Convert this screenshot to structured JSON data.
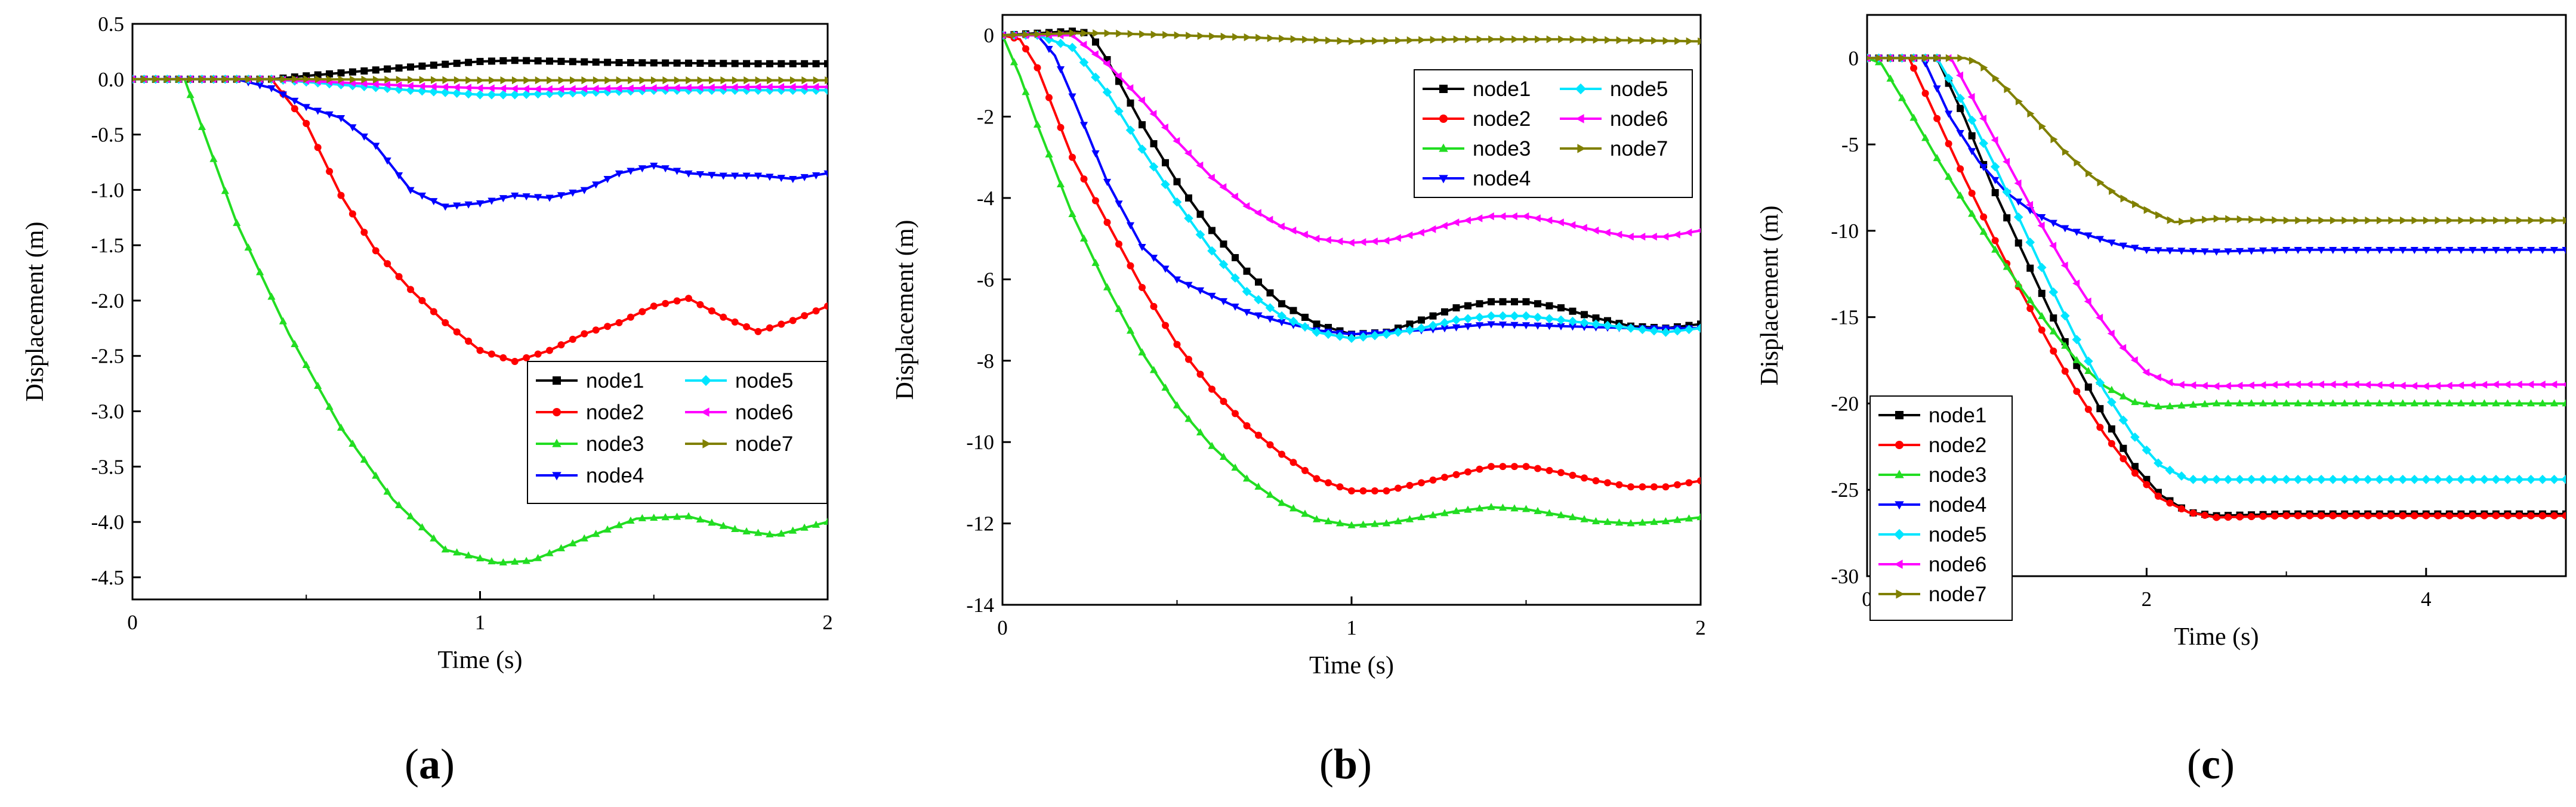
{
  "colors": {
    "node1": "#000000",
    "node2": "#ff0000",
    "node3": "#22dd22",
    "node4": "#0000ff",
    "node5": "#00e5ff",
    "node6": "#ff00ff",
    "node7": "#808000"
  },
  "chart_data": [
    {
      "type": "line",
      "panel_label": "a",
      "xlabel": "Time (s)",
      "ylabel": "Displacement (m)",
      "xlim": [
        0,
        2
      ],
      "ylim": [
        -4.7,
        0.5
      ],
      "xticks": [
        0,
        1,
        2
      ],
      "yticks": [
        0.5,
        0.0,
        -0.5,
        -1.0,
        -1.5,
        -2.0,
        -2.5,
        -3.0,
        -3.5,
        -4.0,
        -4.5
      ],
      "ytick_labels": [
        "0.5",
        "0.0",
        "-0.5",
        "-1.0",
        "-1.5",
        "-2.0",
        "-2.5",
        "-3.0",
        "-3.5",
        "-4.0",
        "-4.5"
      ],
      "xtick_labels": [
        "0",
        "1",
        "2"
      ],
      "legend_columns": 2,
      "legend_position": "lower-right",
      "legend_order": [
        "node1",
        "node5",
        "node2",
        "node6",
        "node3",
        "node7",
        "node4"
      ],
      "series": [
        {
          "name": "node1",
          "x": [
            0,
            0.4,
            0.5,
            0.8,
            1.0,
            1.1,
            1.4,
            1.8,
            2.0
          ],
          "y": [
            0,
            0,
            0.03,
            0.11,
            0.16,
            0.17,
            0.15,
            0.14,
            0.14
          ]
        },
        {
          "name": "node2",
          "x": [
            0,
            0.4,
            0.5,
            0.6,
            0.7,
            0.8,
            0.9,
            1.0,
            1.1,
            1.2,
            1.3,
            1.4,
            1.5,
            1.6,
            1.7,
            1.8,
            1.9,
            2.0
          ],
          "y": [
            0,
            0,
            -0.4,
            -1.05,
            -1.55,
            -1.9,
            -2.2,
            -2.45,
            -2.55,
            -2.45,
            -2.3,
            -2.2,
            -2.05,
            -1.98,
            -2.15,
            -2.28,
            -2.18,
            -2.05
          ]
        },
        {
          "name": "node3",
          "x": [
            0,
            0.15,
            0.3,
            0.45,
            0.6,
            0.75,
            0.9,
            1.05,
            1.15,
            1.3,
            1.45,
            1.6,
            1.75,
            1.85,
            2.0
          ],
          "y": [
            0,
            0,
            -1.3,
            -2.3,
            -3.15,
            -3.8,
            -4.25,
            -4.37,
            -4.35,
            -4.15,
            -3.97,
            -3.95,
            -4.08,
            -4.12,
            -4.0
          ]
        },
        {
          "name": "node4",
          "x": [
            0,
            0.3,
            0.4,
            0.5,
            0.6,
            0.7,
            0.8,
            0.9,
            1.0,
            1.1,
            1.2,
            1.3,
            1.4,
            1.5,
            1.6,
            1.7,
            1.8,
            1.9,
            2.0
          ],
          "y": [
            0,
            0,
            -0.08,
            -0.25,
            -0.35,
            -0.6,
            -1.0,
            -1.15,
            -1.12,
            -1.05,
            -1.07,
            -1.0,
            -0.85,
            -0.78,
            -0.85,
            -0.87,
            -0.87,
            -0.9,
            -0.85
          ]
        },
        {
          "name": "node5",
          "x": [
            0,
            0.4,
            0.6,
            0.8,
            1.0,
            1.1,
            1.3,
            1.5,
            1.7,
            2.0
          ],
          "y": [
            0,
            0,
            -0.05,
            -0.1,
            -0.14,
            -0.14,
            -0.12,
            -0.1,
            -0.1,
            -0.1
          ]
        },
        {
          "name": "node6",
          "x": [
            0,
            0.4,
            0.6,
            0.8,
            1.0,
            1.2,
            1.5,
            1.8,
            2.0
          ],
          "y": [
            0,
            0,
            -0.03,
            -0.06,
            -0.08,
            -0.09,
            -0.08,
            -0.07,
            -0.07
          ]
        },
        {
          "name": "node7",
          "x": [
            0,
            0.5,
            1.0,
            1.5,
            2.0
          ],
          "y": [
            0,
            0,
            -0.01,
            -0.01,
            -0.01
          ]
        }
      ]
    },
    {
      "type": "line",
      "panel_label": "b",
      "xlabel": "Time (s)",
      "ylabel": "Displacement (m)",
      "xlim": [
        0,
        2
      ],
      "ylim": [
        -14,
        0.5
      ],
      "xticks": [
        0,
        1,
        2
      ],
      "yticks": [
        0,
        -2,
        -4,
        -6,
        -8,
        -10,
        -12,
        -14
      ],
      "ytick_labels": [
        "0",
        "-2",
        "-4",
        "-6",
        "-8",
        "-10",
        "-12",
        "-14"
      ],
      "xtick_labels": [
        "0",
        "1",
        "2"
      ],
      "legend_columns": 2,
      "legend_position": "top-right",
      "legend_order": [
        "node1",
        "node5",
        "node2",
        "node6",
        "node3",
        "node7",
        "node4"
      ],
      "series": [
        {
          "name": "node1",
          "x": [
            0,
            0.1,
            0.2,
            0.25,
            0.3,
            0.4,
            0.5,
            0.6,
            0.7,
            0.8,
            0.9,
            1.0,
            1.1,
            1.2,
            1.3,
            1.4,
            1.5,
            1.6,
            1.7,
            1.8,
            1.9,
            2.0
          ],
          "y": [
            0,
            0.05,
            0.1,
            0.05,
            -0.6,
            -2.2,
            -3.6,
            -4.8,
            -5.8,
            -6.6,
            -7.1,
            -7.35,
            -7.3,
            -7.0,
            -6.7,
            -6.55,
            -6.55,
            -6.7,
            -6.95,
            -7.15,
            -7.2,
            -7.1
          ]
        },
        {
          "name": "node2",
          "x": [
            0,
            0.05,
            0.1,
            0.2,
            0.3,
            0.4,
            0.5,
            0.6,
            0.7,
            0.8,
            0.9,
            1.0,
            1.1,
            1.2,
            1.3,
            1.4,
            1.5,
            1.6,
            1.7,
            1.8,
            1.9,
            2.0
          ],
          "y": [
            0,
            -0.1,
            -0.8,
            -3.0,
            -4.6,
            -6.2,
            -7.6,
            -8.7,
            -9.6,
            -10.3,
            -10.9,
            -11.2,
            -11.2,
            -11.0,
            -10.8,
            -10.6,
            -10.6,
            -10.75,
            -10.95,
            -11.1,
            -11.1,
            -10.95
          ]
        },
        {
          "name": "node3",
          "x": [
            0,
            0.05,
            0.1,
            0.2,
            0.3,
            0.4,
            0.5,
            0.6,
            0.7,
            0.8,
            0.9,
            1.0,
            1.1,
            1.2,
            1.3,
            1.4,
            1.5,
            1.6,
            1.7,
            1.8,
            1.9,
            2.0
          ],
          "y": [
            0,
            -1.0,
            -2.2,
            -4.4,
            -6.2,
            -7.8,
            -9.1,
            -10.1,
            -10.9,
            -11.5,
            -11.9,
            -12.05,
            -12.0,
            -11.85,
            -11.7,
            -11.6,
            -11.65,
            -11.8,
            -11.95,
            -12.0,
            -11.95,
            -11.85
          ]
        },
        {
          "name": "node4",
          "x": [
            0,
            0.1,
            0.15,
            0.2,
            0.3,
            0.4,
            0.5,
            0.6,
            0.7,
            0.8,
            0.9,
            1.0,
            1.2,
            1.4,
            1.6,
            1.8,
            2.0
          ],
          "y": [
            0,
            0,
            -0.5,
            -1.5,
            -3.6,
            -5.2,
            -6.0,
            -6.4,
            -6.8,
            -7.05,
            -7.25,
            -7.35,
            -7.25,
            -7.1,
            -7.15,
            -7.2,
            -7.2
          ]
        },
        {
          "name": "node5",
          "x": [
            0,
            0.1,
            0.2,
            0.3,
            0.4,
            0.5,
            0.6,
            0.7,
            0.8,
            0.9,
            1.0,
            1.1,
            1.2,
            1.3,
            1.4,
            1.5,
            1.6,
            1.7,
            1.8,
            1.9,
            2.0
          ],
          "y": [
            0,
            0,
            -0.3,
            -1.4,
            -2.8,
            -4.1,
            -5.3,
            -6.3,
            -6.9,
            -7.3,
            -7.45,
            -7.35,
            -7.2,
            -7.0,
            -6.9,
            -6.9,
            -7.0,
            -7.1,
            -7.2,
            -7.3,
            -7.2
          ]
        },
        {
          "name": "node6",
          "x": [
            0,
            0.2,
            0.3,
            0.4,
            0.5,
            0.6,
            0.7,
            0.8,
            0.9,
            1.0,
            1.1,
            1.2,
            1.3,
            1.4,
            1.5,
            1.6,
            1.7,
            1.8,
            1.9,
            2.0
          ],
          "y": [
            0,
            0,
            -0.7,
            -1.6,
            -2.6,
            -3.5,
            -4.2,
            -4.7,
            -5.0,
            -5.1,
            -5.05,
            -4.85,
            -4.6,
            -4.45,
            -4.45,
            -4.6,
            -4.8,
            -4.95,
            -4.95,
            -4.8
          ]
        },
        {
          "name": "node7",
          "x": [
            0,
            0.2,
            0.3,
            0.5,
            0.7,
            1.0,
            1.3,
            1.6,
            2.0
          ],
          "y": [
            0,
            0.05,
            0.05,
            0.0,
            -0.05,
            -0.15,
            -0.1,
            -0.1,
            -0.15
          ]
        }
      ]
    },
    {
      "type": "line",
      "panel_label": "c",
      "xlabel": "Time (s)",
      "ylabel": "Displacement (m)",
      "xlim": [
        0,
        5
      ],
      "ylim": [
        -30,
        2.5
      ],
      "xticks": [
        0,
        2,
        4
      ],
      "yticks": [
        0,
        -5,
        -10,
        -15,
        -20,
        -25,
        -30
      ],
      "ytick_labels": [
        "0",
        "-5",
        "-10",
        "-15",
        "-20",
        "-25",
        "-30"
      ],
      "xtick_labels": [
        "0",
        "2",
        "4"
      ],
      "legend_columns": 1,
      "legend_position": "lower-left",
      "legend_order": [
        "node1",
        "node2",
        "node3",
        "node4",
        "node5",
        "node6",
        "node7"
      ],
      "series": [
        {
          "name": "node1",
          "x": [
            0,
            0.5,
            0.7,
            0.9,
            1.1,
            1.3,
            1.5,
            1.7,
            1.9,
            2.1,
            2.3,
            2.5,
            3.0,
            3.5,
            4.0,
            4.5,
            5.0
          ],
          "y": [
            0,
            0,
            -3.5,
            -7.5,
            -11.0,
            -14.5,
            -17.8,
            -20.8,
            -23.5,
            -25.3,
            -26.3,
            -26.5,
            -26.4,
            -26.4,
            -26.4,
            -26.4,
            -26.4
          ]
        },
        {
          "name": "node2",
          "x": [
            0,
            0.3,
            0.5,
            0.7,
            0.9,
            1.1,
            1.3,
            1.5,
            1.7,
            1.9,
            2.1,
            2.3,
            2.5,
            3.0,
            3.5,
            4.0,
            4.5,
            5.0
          ],
          "y": [
            0,
            0,
            -3.5,
            -7.0,
            -10.3,
            -13.5,
            -16.5,
            -19.3,
            -21.8,
            -23.9,
            -25.5,
            -26.3,
            -26.6,
            -26.5,
            -26.5,
            -26.5,
            -26.5,
            -26.5
          ]
        },
        {
          "name": "node3",
          "x": [
            0,
            0.1,
            0.3,
            0.5,
            0.7,
            0.9,
            1.1,
            1.3,
            1.5,
            1.7,
            1.9,
            2.1,
            2.5,
            3.0,
            3.5,
            4.0,
            4.5,
            5.0
          ],
          "y": [
            0,
            -0.3,
            -3.0,
            -5.8,
            -8.4,
            -10.9,
            -13.3,
            -15.5,
            -17.5,
            -19.0,
            -19.9,
            -20.2,
            -20.0,
            -20.0,
            -20.0,
            -20.0,
            -20.0,
            -20.0
          ]
        },
        {
          "name": "node4",
          "x": [
            0,
            0.4,
            0.6,
            0.8,
            1.0,
            1.2,
            1.4,
            1.6,
            1.8,
            2.0,
            2.5,
            3.0,
            3.5,
            4.0,
            4.5,
            5.0
          ],
          "y": [
            0,
            0,
            -3.5,
            -6.0,
            -7.8,
            -9.0,
            -9.8,
            -10.3,
            -10.8,
            -11.1,
            -11.2,
            -11.1,
            -11.1,
            -11.1,
            -11.1,
            -11.1
          ]
        },
        {
          "name": "node5",
          "x": [
            0,
            0.5,
            0.7,
            0.9,
            1.1,
            1.3,
            1.5,
            1.7,
            1.9,
            2.1,
            2.3,
            2.5,
            3.0,
            3.5,
            4.0,
            4.5,
            5.0
          ],
          "y": [
            0,
            0,
            -2.8,
            -6.0,
            -9.5,
            -13.0,
            -16.3,
            -19.3,
            -21.8,
            -23.6,
            -24.4,
            -24.4,
            -24.4,
            -24.4,
            -24.4,
            -24.4,
            -24.4
          ]
        },
        {
          "name": "node6",
          "x": [
            0,
            0.6,
            0.8,
            1.0,
            1.2,
            1.4,
            1.6,
            1.8,
            2.0,
            2.2,
            2.5,
            3.0,
            3.5,
            4.0,
            4.5,
            5.0
          ],
          "y": [
            0,
            0,
            -3.0,
            -6.0,
            -9.0,
            -11.8,
            -14.3,
            -16.5,
            -18.2,
            -18.9,
            -19.0,
            -18.9,
            -18.9,
            -19.0,
            -18.9,
            -18.9
          ]
        },
        {
          "name": "node7",
          "x": [
            0,
            0.7,
            0.8,
            1.0,
            1.2,
            1.4,
            1.6,
            1.8,
            2.0,
            2.2,
            2.5,
            3.0,
            3.5,
            4.0,
            4.5,
            5.0
          ],
          "y": [
            0,
            0,
            -0.3,
            -1.8,
            -3.5,
            -5.3,
            -6.8,
            -8.0,
            -8.8,
            -9.5,
            -9.3,
            -9.4,
            -9.4,
            -9.4,
            -9.4,
            -9.4
          ]
        }
      ]
    }
  ]
}
